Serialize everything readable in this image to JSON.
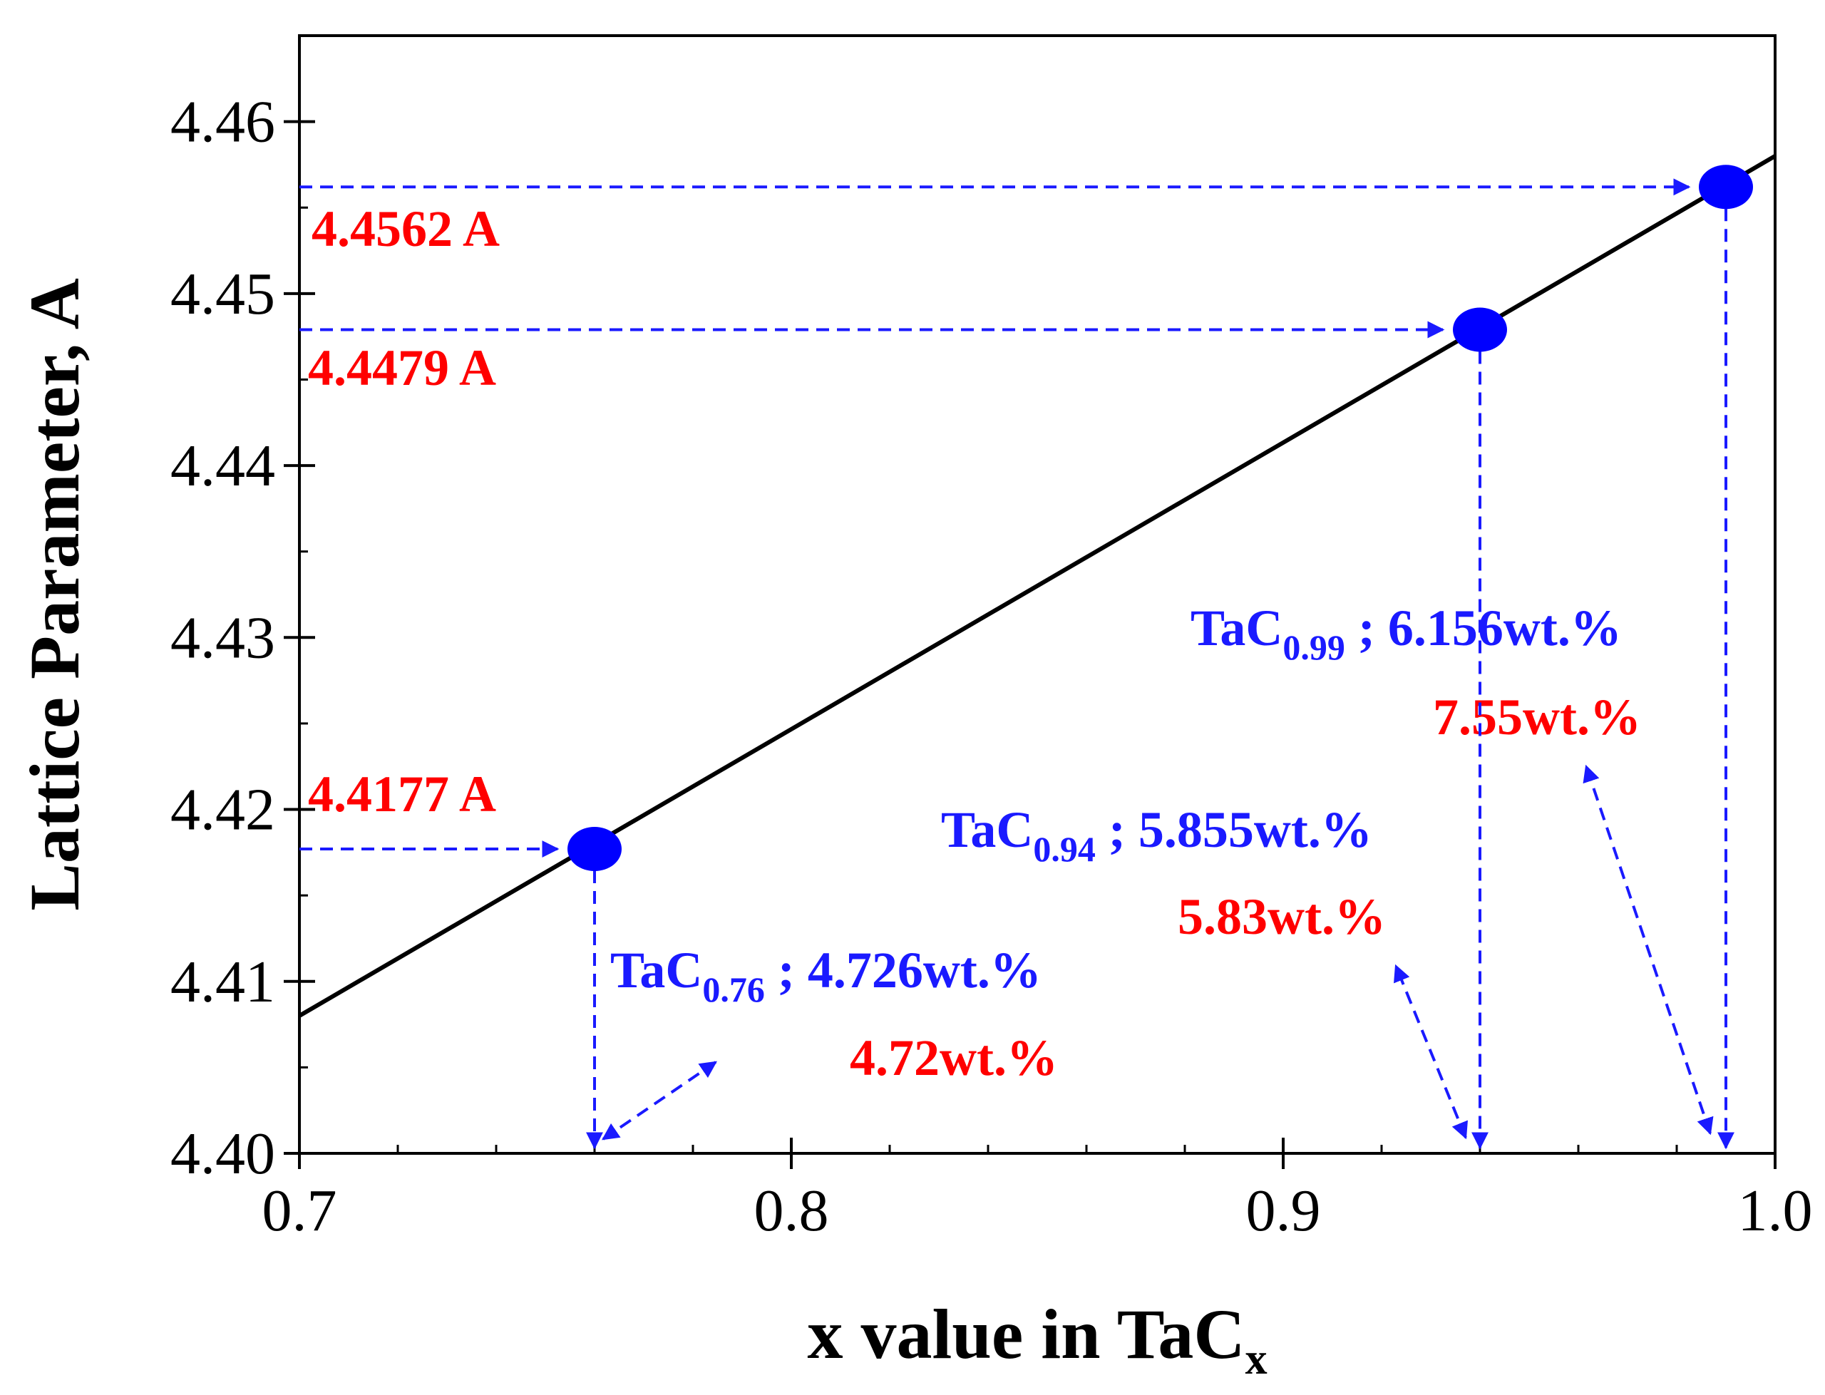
{
  "chart_data": {
    "type": "line+scatter",
    "title": "",
    "xlabel": "x value in TaC",
    "xlabel_sub": "x",
    "ylabel": "Lattice Parameter, A",
    "xlim": [
      0.7,
      1.0
    ],
    "ylim": [
      4.4,
      4.465
    ],
    "x_ticks": [
      "0.7",
      "0.8",
      "0.9",
      "1.0"
    ],
    "y_ticks": [
      "4.40",
      "4.41",
      "4.42",
      "4.43",
      "4.44",
      "4.45",
      "4.46"
    ],
    "grid": false,
    "fit_line": {
      "x": [
        0.7,
        1.0
      ],
      "y": [
        4.408,
        4.458
      ]
    },
    "points": [
      {
        "x": 0.76,
        "y": 4.4177,
        "lattice_label": "4.4177 A",
        "formula": "TaC",
        "subscript": "0.76",
        "calc_text": " ; 4.726wt.%",
        "measured_text": "4.72wt.%"
      },
      {
        "x": 0.94,
        "y": 4.4479,
        "lattice_label": "4.4479 A",
        "formula": "TaC",
        "subscript": "0.94",
        "calc_text": " ; 5.855wt.%",
        "measured_text": "5.83wt.%"
      },
      {
        "x": 0.99,
        "y": 4.4562,
        "lattice_label": "4.4562 A",
        "formula": "TaC",
        "subscript": "0.99",
        "calc_text": " ; 6.156wt.%",
        "measured_text": "7.55wt.%"
      }
    ],
    "colors": {
      "line": "#000000",
      "points": "#0000ff",
      "guides": "#1a1aff",
      "blue_text": "#1a1aff",
      "red_text": "#ff0000"
    }
  }
}
